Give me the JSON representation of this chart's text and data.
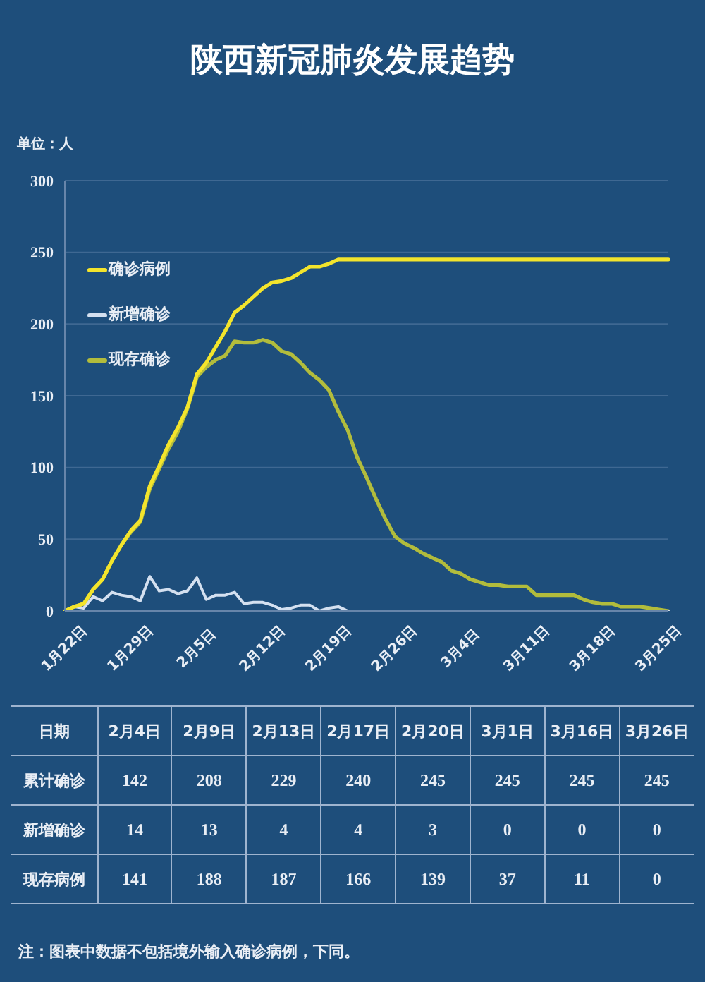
{
  "chart_data": [
    {
      "type": "line",
      "title": "陕西新冠肺炎发展趋势",
      "ylabel": "单位：人",
      "categories": [
        "1月22日",
        null,
        null,
        null,
        null,
        null,
        null,
        "1月29日",
        null,
        null,
        null,
        null,
        null,
        null,
        "2月5日",
        null,
        null,
        null,
        null,
        null,
        null,
        "2月12日",
        null,
        null,
        null,
        null,
        null,
        null,
        "2月19日",
        null,
        null,
        null,
        null,
        null,
        null,
        "2月26日",
        null,
        null,
        null,
        null,
        null,
        null,
        "3月4日",
        null,
        null,
        null,
        null,
        null,
        null,
        "3月11日",
        null,
        null,
        null,
        null,
        null,
        null,
        "3月18日",
        null,
        null,
        null,
        null,
        null,
        null,
        "3月25日",
        null
      ],
      "series": [
        {
          "name": "确诊病例",
          "color": "#f3e42c",
          "values": [
            0,
            3,
            5,
            15,
            22,
            35,
            46,
            56,
            63,
            87,
            101,
            116,
            128,
            142,
            165,
            173,
            184,
            195,
            208,
            213,
            219,
            225,
            229,
            230,
            232,
            236,
            240,
            240,
            242,
            245,
            245,
            245,
            245,
            245,
            245,
            245,
            245,
            245,
            245,
            245,
            245,
            245,
            245,
            245,
            245,
            245,
            245,
            245,
            245,
            245,
            245,
            245,
            245,
            245,
            245,
            245,
            245,
            245,
            245,
            245,
            245,
            245,
            245,
            245,
            245
          ]
        },
        {
          "name": "新增确诊",
          "color": "#d4e0f0",
          "values": [
            0,
            3,
            2,
            10,
            7,
            13,
            11,
            10,
            7,
            24,
            14,
            15,
            12,
            14,
            23,
            8,
            11,
            11,
            13,
            5,
            6,
            6,
            4,
            1,
            2,
            4,
            4,
            0,
            2,
            3,
            0,
            0,
            0,
            0,
            0,
            0,
            0,
            0,
            0,
            0,
            0,
            0,
            0,
            0,
            0,
            0,
            0,
            0,
            0,
            0,
            0,
            0,
            0,
            0,
            0,
            0,
            0,
            0,
            0,
            0,
            0,
            0,
            0,
            0,
            0
          ]
        },
        {
          "name": "现存确诊",
          "color": "#b2bc3c",
          "values": [
            0,
            3,
            5,
            15,
            22,
            35,
            46,
            55,
            62,
            85,
            99,
            113,
            125,
            141,
            163,
            170,
            175,
            178,
            188,
            187,
            187,
            189,
            187,
            181,
            179,
            173,
            166,
            161,
            154,
            139,
            126,
            107,
            93,
            78,
            64,
            52,
            47,
            44,
            40,
            37,
            34,
            28,
            26,
            22,
            20,
            18,
            18,
            17,
            17,
            17,
            11,
            11,
            11,
            11,
            11,
            8,
            6,
            5,
            5,
            3,
            3,
            3,
            2,
            1,
            0
          ]
        }
      ],
      "ylim": [
        0,
        300
      ],
      "yticks": [
        0,
        50,
        100,
        150,
        200,
        250,
        300
      ],
      "grid": "y",
      "legend": "top left"
    },
    {
      "type": "heatmap",
      "xlabel": "日期",
      "categories": [
        "2月4日",
        "2月9日",
        "2月13日",
        "2月17日",
        "2月20日",
        "3月1日",
        "3月16日",
        "3月26日"
      ],
      "y_categories": [
        "累计确诊",
        "新增确诊",
        "现存病例"
      ],
      "cells": [
        [
          142,
          208,
          229,
          240,
          245,
          245,
          245,
          245
        ],
        [
          14,
          13,
          4,
          4,
          3,
          0,
          0,
          0
        ],
        [
          141,
          188,
          187,
          166,
          139,
          37,
          11,
          0
        ]
      ],
      "data_labels": true,
      "annotations": [
        "注：图表中数据不包括境外输入确诊病例，下同。"
      ]
    }
  ]
}
